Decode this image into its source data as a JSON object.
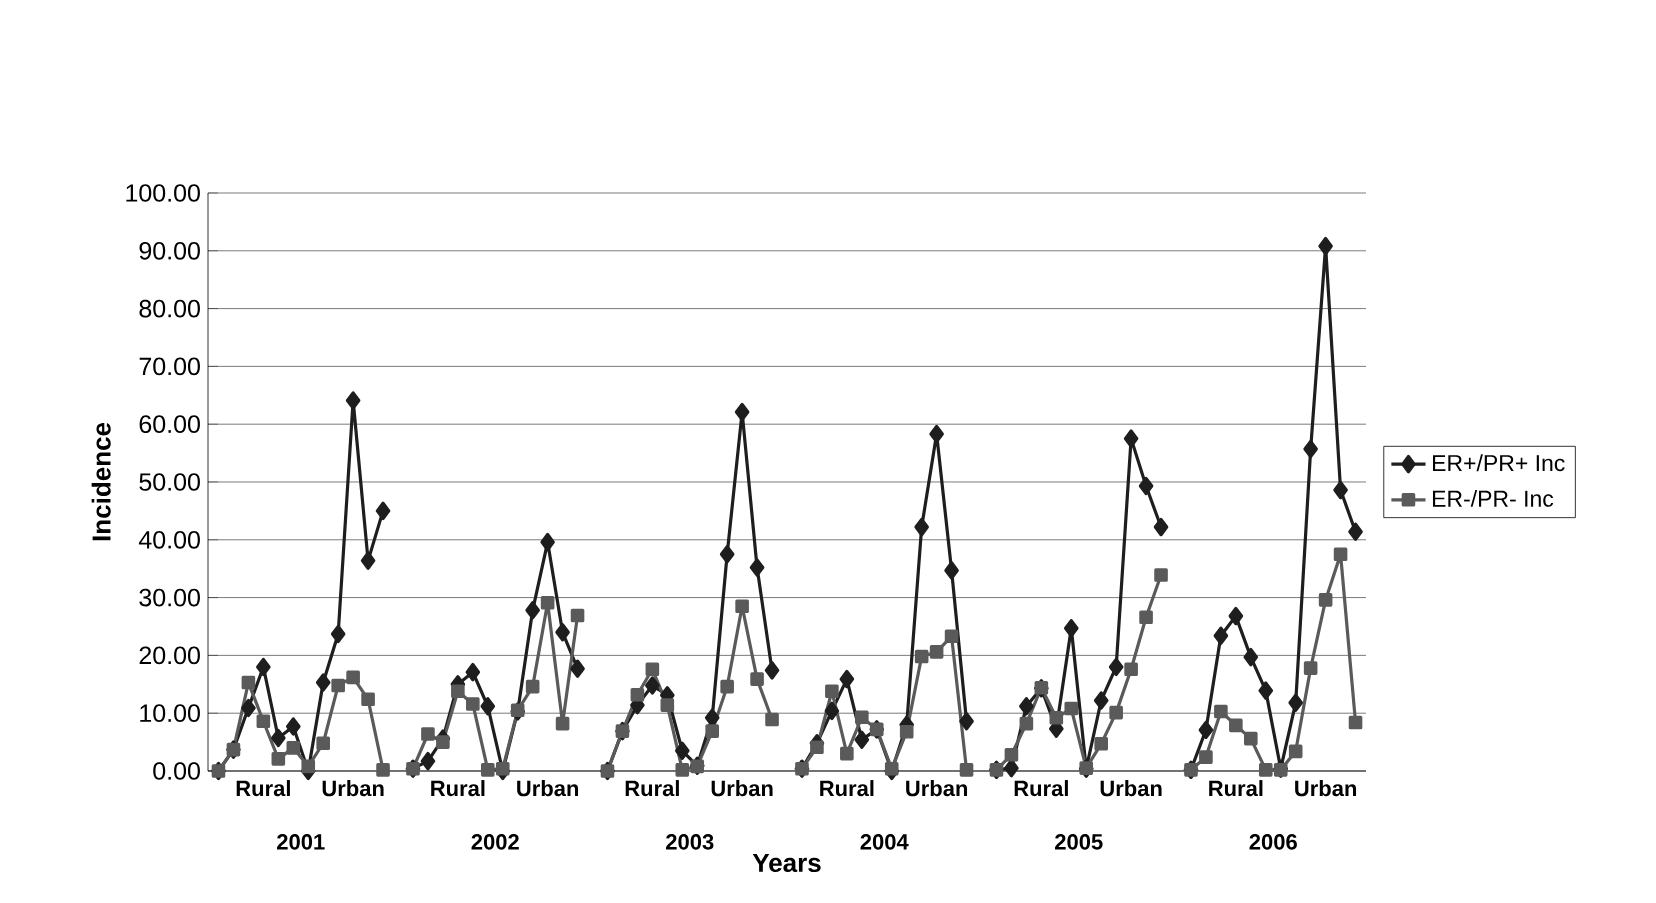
{
  "chart_data": {
    "type": "line",
    "xlabel": "Years",
    "ylabel": "Incidence",
    "categories": [
      null,
      null,
      null,
      "Rural",
      null,
      null,
      null,
      null,
      null,
      "Urban",
      null,
      null,
      null,
      null,
      null,
      null,
      "Rural",
      null,
      null,
      null,
      null,
      null,
      "Urban",
      null,
      null,
      null,
      null,
      null,
      null,
      "Rural",
      null,
      null,
      null,
      null,
      null,
      "Urban",
      null,
      null,
      null,
      null,
      null,
      null,
      "Rural",
      null,
      null,
      null,
      null,
      null,
      "Urban",
      null,
      null,
      null,
      null,
      null,
      null,
      "Rural",
      null,
      null,
      null,
      null,
      null,
      "Urban",
      null,
      null,
      null,
      null,
      null,
      null,
      "Rural",
      null,
      null,
      null,
      null,
      null,
      "Urban",
      null,
      null
    ],
    "annotations": [
      "2001",
      "2002",
      "2003",
      "2004",
      "2005",
      "2006"
    ],
    "series": [
      {
        "name": "ER+/PR+ Inc",
        "color": "#1e1e1e",
        "marker": "diamond",
        "values": [
          0,
          3.7,
          10.9,
          18.0,
          5.7,
          7.7,
          0,
          15.3,
          23.7,
          64.1,
          36.4,
          45.0,
          null,
          0.4,
          1.7,
          5.6,
          15.0,
          17.1,
          11.2,
          0,
          10.3,
          27.8,
          39.6,
          24.0,
          17.7,
          null,
          0,
          6.9,
          11.4,
          14.8,
          13.1,
          3.5,
          0.9,
          9.2,
          37.5,
          62.1,
          35.2,
          17.4,
          null,
          0.4,
          4.8,
          10.4,
          15.9,
          5.4,
          7.2,
          0,
          8.0,
          42.2,
          58.3,
          34.7,
          8.6,
          null,
          0.2,
          0.5,
          11.2,
          14.3,
          7.3,
          24.7,
          0.4,
          12.2,
          18.0,
          57.5,
          49.3,
          42.2,
          null,
          0.2,
          7.1,
          23.4,
          26.8,
          19.7,
          13.9,
          0.4,
          11.8,
          55.7,
          90.8,
          48.6,
          41.4
        ]
      },
      {
        "name": "ER-/PR- Inc",
        "color": "#5a5a5a",
        "marker": "square",
        "values": [
          0,
          3.7,
          15.3,
          8.6,
          2.1,
          4.0,
          0.8,
          4.8,
          14.8,
          16.2,
          12.4,
          0.2,
          null,
          0.4,
          6.4,
          5.0,
          13.8,
          11.6,
          0.2,
          0.4,
          10.5,
          14.6,
          29.1,
          8.2,
          26.9,
          null,
          0,
          6.9,
          13.2,
          17.6,
          11.4,
          0.2,
          0.8,
          6.9,
          14.6,
          28.5,
          15.9,
          8.9,
          null,
          0.4,
          4.1,
          13.8,
          3.0,
          9.3,
          7.2,
          0.4,
          6.8,
          19.8,
          20.6,
          23.3,
          0.2,
          null,
          0.2,
          2.8,
          8.2,
          14.4,
          9.2,
          10.8,
          0.5,
          4.7,
          10.1,
          17.6,
          26.6,
          33.9,
          null,
          0.2,
          2.4,
          10.3,
          7.9,
          5.6,
          0.2,
          0.2,
          3.4,
          17.8,
          29.6,
          37.5,
          8.4
        ]
      }
    ],
    "ylim": [
      0,
      100
    ],
    "yticks": [
      {
        "value": 0,
        "label": "0.00"
      },
      {
        "value": 10,
        "label": "10.00"
      },
      {
        "value": 20,
        "label": "20.00"
      },
      {
        "value": 30,
        "label": "30.00"
      },
      {
        "value": 40,
        "label": "40.00"
      },
      {
        "value": 50,
        "label": "50.00"
      },
      {
        "value": 60,
        "label": "60.00"
      },
      {
        "value": 70,
        "label": "70.00"
      },
      {
        "value": 80,
        "label": "80.00"
      },
      {
        "value": 90,
        "label": "90.00"
      },
      {
        "value": 100,
        "label": "100.00"
      }
    ],
    "grid": "y",
    "legend": "right",
    "line_style": "solid"
  }
}
